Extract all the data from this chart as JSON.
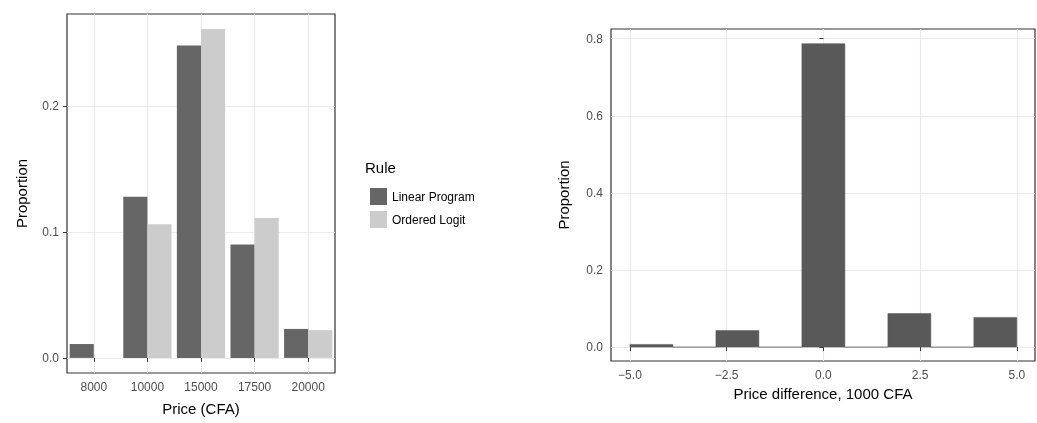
{
  "chart_data": [
    {
      "type": "bar",
      "xlabel": "Price (CFA)",
      "ylabel": "Proportion",
      "legend_title": "Rule",
      "legend": "right",
      "categories": [
        "8000",
        "10000",
        "15000",
        "17500",
        "20000"
      ],
      "series": [
        {
          "name": "Linear Program",
          "color": "#666666",
          "values": [
            0.011,
            0.128,
            0.248,
            0.09,
            0.023
          ]
        },
        {
          "name": "Ordered Logit",
          "color": "#cccccc",
          "values": [
            null,
            0.106,
            0.261,
            0.111,
            0.022
          ]
        }
      ],
      "ylim": [
        -0.012,
        0.273
      ],
      "yticks": [
        {
          "value": 0,
          "label": "0.0"
        },
        0.1,
        0.2
      ],
      "grid": true
    },
    {
      "type": "histogram",
      "xlabel": "Price difference, 1000 CFA",
      "ylabel": "Proportion",
      "color": "#595959",
      "bins": [
        -5,
        -3.889,
        -2.778,
        -1.667,
        -0.556,
        0.556,
        1.667,
        2.778,
        3.889,
        5
      ],
      "values": [
        0.007,
        0,
        0.043,
        0,
        0.787,
        0,
        0.087,
        0,
        0.077
      ],
      "xlim": [
        -5.49,
        5.47
      ],
      "xticks": [
        {
          "value": -5,
          "label": "−5.0"
        },
        {
          "value": -2.5,
          "label": "−2.5"
        },
        {
          "value": 0,
          "label": "0.0"
        },
        2.5,
        {
          "value": 5,
          "label": "5.0"
        }
      ],
      "ylim": [
        -0.036,
        0.825
      ],
      "yticks": [
        {
          "value": 0,
          "label": "0.0"
        },
        0.2,
        0.4,
        0.6,
        0.8
      ],
      "grid": true
    }
  ]
}
